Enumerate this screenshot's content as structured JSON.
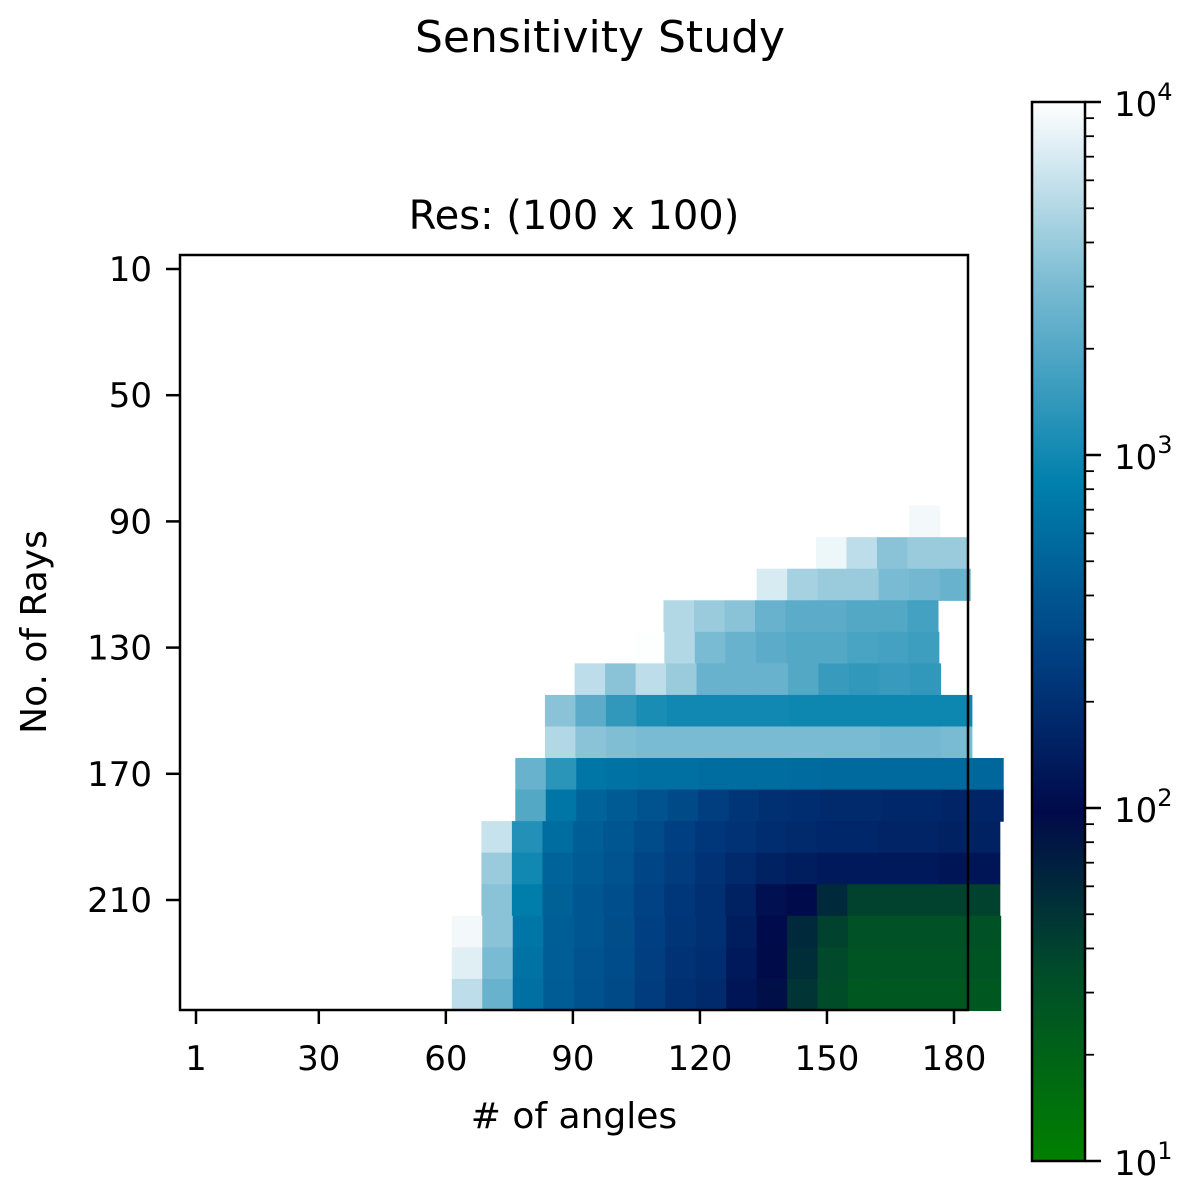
{
  "chart_data": {
    "type": "heatmap",
    "suptitle": "Sensitivity Study",
    "title": "Res: (100 x 100)",
    "xlabel": "# of angles",
    "ylabel": "No. of Rays",
    "x_ticks": [
      1,
      30,
      60,
      90,
      120,
      150,
      180
    ],
    "y_ticks": [
      10,
      50,
      90,
      130,
      170,
      210
    ],
    "x_range": [
      1,
      180
    ],
    "y_range": [
      10,
      240
    ],
    "colorbar": {
      "scale": "log",
      "min": 10,
      "max": 10000,
      "ticks": [
        {
          "base": "10",
          "exp": "1"
        },
        {
          "base": "10",
          "exp": "2"
        },
        {
          "base": "10",
          "exp": "3"
        },
        {
          "base": "10",
          "exp": "4"
        }
      ],
      "colors": [
        "#008000",
        "#004b2a",
        "#000a4a",
        "#003d80",
        "#0080ac",
        "#7cbcd3",
        "#ffffff"
      ]
    },
    "x_step": 7.2,
    "y_step": 10,
    "rows": [
      {
        "y": 90,
        "x_start": 173,
        "values": [
          9000
        ]
      },
      {
        "y": 100,
        "x_start": 151,
        "values": [
          8500,
          5500,
          3500,
          4000,
          4000
        ]
      },
      {
        "y": 110,
        "x_start": 137,
        "values": [
          7000,
          4500,
          4000,
          4000,
          3000,
          2800,
          2500
        ]
      },
      {
        "y": 120,
        "x_start": 115,
        "values": [
          5000,
          4000,
          3500,
          2500,
          2200,
          2200,
          2000,
          2000,
          1700
        ]
      },
      {
        "y": 130,
        "x_start": 108,
        "values": [
          9800,
          5000,
          3000,
          2500,
          2200,
          2000,
          2000,
          1800,
          1700,
          1600
        ]
      },
      {
        "y": 140,
        "x_start": 94,
        "values": [
          5500,
          3500,
          5500,
          4000,
          2500,
          2500,
          2500,
          2000,
          1500,
          1400,
          1500,
          1400
        ]
      },
      {
        "y": 150,
        "x_start": 87,
        "values": [
          3500,
          2200,
          1400,
          1100,
          1000,
          1000,
          1000,
          1000,
          950,
          950,
          950,
          950,
          950,
          950
        ]
      },
      {
        "y": 160,
        "x_start": 87,
        "values": [
          5000,
          3500,
          3200,
          3000,
          3000,
          3000,
          3000,
          3000,
          3000,
          3000,
          3000,
          2800,
          2800,
          3000
        ]
      },
      {
        "y": 170,
        "x_start": 80,
        "values": [
          2500,
          1300,
          700,
          650,
          620,
          620,
          600,
          600,
          600,
          580,
          560,
          560,
          560,
          560,
          560,
          540
        ]
      },
      {
        "y": 180,
        "x_start": 80,
        "values": [
          2000,
          700,
          500,
          430,
          380,
          320,
          260,
          220,
          200,
          190,
          180,
          180,
          170,
          170,
          160,
          160
        ]
      },
      {
        "y": 190,
        "x_start": 72,
        "values": [
          6000,
          1200,
          600,
          460,
          400,
          330,
          270,
          230,
          210,
          190,
          180,
          170,
          170,
          160,
          160,
          150,
          150
        ]
      },
      {
        "y": 200,
        "x_start": 72,
        "values": [
          4000,
          1000,
          500,
          430,
          380,
          300,
          250,
          210,
          180,
          150,
          140,
          130,
          130,
          130,
          130,
          120,
          120
        ]
      },
      {
        "y": 210,
        "x_start": 72,
        "values": [
          3500,
          800,
          480,
          400,
          350,
          280,
          230,
          200,
          150,
          110,
          100,
          60,
          40,
          40,
          40,
          40,
          40
        ]
      },
      {
        "y": 220,
        "x_start": 65,
        "values": [
          9000,
          3500,
          700,
          460,
          400,
          340,
          270,
          220,
          200,
          140,
          100,
          60,
          40,
          30,
          30,
          30,
          30,
          30
        ]
      },
      {
        "y": 230,
        "x_start": 65,
        "values": [
          7500,
          3000,
          650,
          450,
          380,
          330,
          260,
          210,
          190,
          130,
          95,
          55,
          36,
          28,
          28,
          28,
          28,
          28
        ]
      },
      {
        "y": 240,
        "x_start": 65,
        "values": [
          5500,
          2500,
          620,
          440,
          370,
          320,
          250,
          200,
          180,
          120,
          90,
          50,
          34,
          26,
          26,
          26,
          26,
          26
        ]
      }
    ]
  }
}
